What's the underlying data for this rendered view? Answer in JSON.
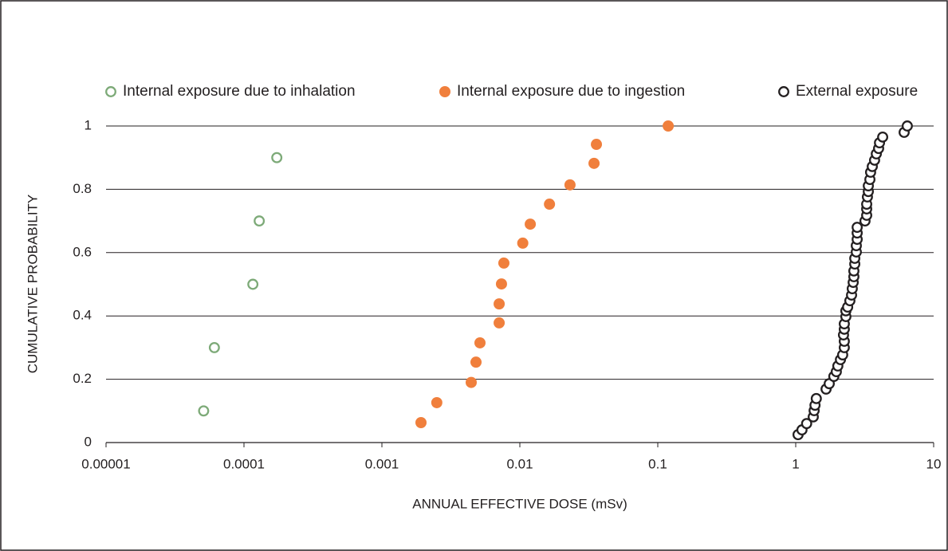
{
  "chart_data": {
    "type": "scatter",
    "xlabel": "ANNUAL EFFECTIVE DOSE (mSv)",
    "ylabel": "CUMULATIVE PROBABILITY",
    "xscale": "log",
    "xlim": [
      1e-05,
      10
    ],
    "ylim": [
      0,
      1
    ],
    "xticks": [
      {
        "value": 1e-05,
        "label": "0.00001"
      },
      0.0001,
      0.001,
      0.01,
      0.1,
      1,
      10
    ],
    "yticks": [
      0,
      0.2,
      0.4,
      0.6,
      0.8,
      1
    ],
    "grid": true,
    "legend": "top",
    "series": [
      {
        "name": "Internal exposure due to inhalation",
        "color": "#7daa78",
        "filled": false,
        "x": [
          5.1e-05,
          6.1e-05,
          0.000116,
          0.000129,
          0.000173
        ],
        "y": [
          0.1,
          0.3,
          0.5,
          0.7,
          0.9
        ]
      },
      {
        "name": "Internal exposure due to ingestion",
        "color": "#f07f3c",
        "filled": true,
        "x": [
          0.00192,
          0.0025,
          0.00444,
          0.00481,
          0.00514,
          0.00708,
          0.00708,
          0.00736,
          0.00766,
          0.0105,
          0.0119,
          0.0164,
          0.0231,
          0.0345,
          0.0359,
          0.119
        ],
        "y": [
          0.063,
          0.126,
          0.19,
          0.254,
          0.315,
          0.378,
          0.438,
          0.501,
          0.567,
          0.63,
          0.69,
          0.753,
          0.814,
          0.882,
          0.942,
          1.0
        ]
      },
      {
        "name": "External exposure",
        "color": "#231f20",
        "filled": false,
        "x": [
          1.04,
          1.11,
          1.2,
          1.34,
          1.36,
          1.38,
          1.41,
          1.66,
          1.75,
          1.89,
          1.97,
          2.02,
          2.11,
          2.19,
          2.25,
          2.25,
          2.22,
          2.25,
          2.25,
          2.31,
          2.31,
          2.38,
          2.47,
          2.54,
          2.57,
          2.61,
          2.64,
          2.64,
          2.68,
          2.68,
          2.75,
          2.75,
          2.79,
          2.79,
          2.79,
          3.18,
          3.27,
          3.27,
          3.27,
          3.31,
          3.36,
          3.36,
          3.45,
          3.49,
          3.59,
          3.73,
          3.84,
          3.99,
          4.05,
          4.27,
          6.11,
          6.44
        ],
        "y": [
          0.025,
          0.04,
          0.06,
          0.081,
          0.101,
          0.118,
          0.139,
          0.169,
          0.186,
          0.209,
          0.224,
          0.242,
          0.262,
          0.277,
          0.3,
          0.32,
          0.34,
          0.358,
          0.375,
          0.398,
          0.416,
          0.428,
          0.448,
          0.466,
          0.486,
          0.506,
          0.524,
          0.542,
          0.564,
          0.582,
          0.602,
          0.622,
          0.642,
          0.662,
          0.68,
          0.7,
          0.718,
          0.738,
          0.753,
          0.776,
          0.793,
          0.811,
          0.831,
          0.854,
          0.872,
          0.892,
          0.912,
          0.929,
          0.947,
          0.965,
          0.98,
          1.0
        ]
      }
    ]
  }
}
